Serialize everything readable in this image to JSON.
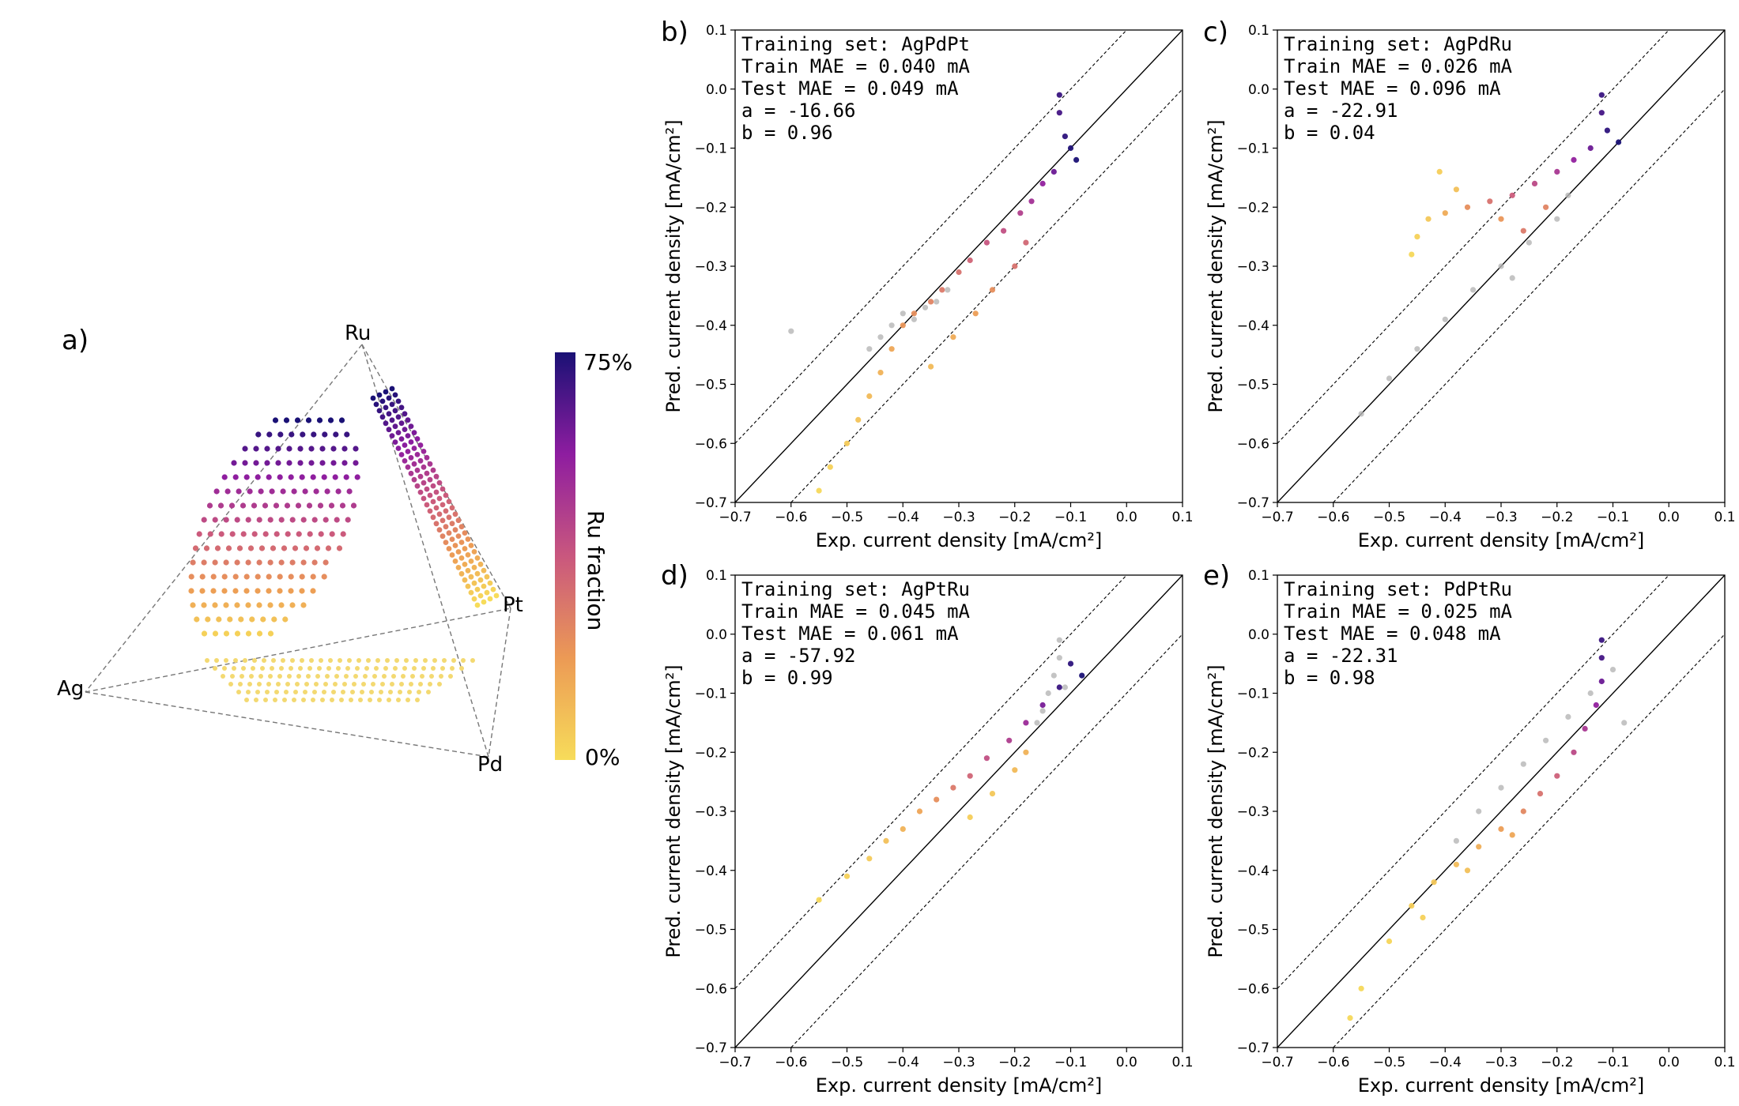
{
  "panel_labels": [
    "a)",
    "b)",
    "c)",
    "d)",
    "e)"
  ],
  "colors": {
    "ru_low": "#f5d44b",
    "ru_mid": "#c44e8a",
    "ru_high": "#1a1175",
    "test_points": "#b5b5b5",
    "parity_line": "#000000"
  },
  "tetrahedron": {
    "vertices": [
      "Ru",
      "Pt",
      "Ag",
      "Pd"
    ],
    "colorbar": {
      "title": "Ru fraction",
      "max_label": "75%",
      "min_label": "0%"
    }
  },
  "axes": {
    "xlabel": "Exp. current density [mA/cm²]",
    "ylabel": "Pred. current density [mA/cm²]",
    "ticks": [
      "−0.7",
      "−0.6",
      "−0.5",
      "−0.4",
      "−0.3",
      "−0.2",
      "−0.1",
      "0.0",
      "0.1"
    ]
  },
  "chart_data": [
    {
      "type": "scatter",
      "panel": "b)",
      "annotations": [
        "Training set: AgPdPt",
        "Train MAE = 0.040 mA",
        "Test MAE = 0.049 mA",
        "a = -16.66",
        "b = 0.96"
      ],
      "xlabel": "Exp. current density [mA/cm²]",
      "ylabel": "Pred. current density [mA/cm²]",
      "xlim": [
        -0.7,
        0.1
      ],
      "ylim": [
        -0.7,
        0.1
      ],
      "reference_lines": [
        "y = x",
        "y = x + 0.1",
        "y = x − 0.1"
      ],
      "series": [
        {
          "role": "train",
          "points": [
            [
              -0.12,
              -0.01,
              0.7
            ],
            [
              -0.12,
              -0.04,
              0.68
            ],
            [
              -0.11,
              -0.08,
              0.72
            ],
            [
              -0.1,
              -0.1,
              0.74
            ],
            [
              -0.09,
              -0.12,
              0.75
            ],
            [
              -0.13,
              -0.14,
              0.62
            ],
            [
              -0.15,
              -0.16,
              0.55
            ],
            [
              -0.17,
              -0.19,
              0.5
            ],
            [
              -0.19,
              -0.21,
              0.45
            ],
            [
              -0.22,
              -0.24,
              0.4
            ],
            [
              -0.25,
              -0.26,
              0.38
            ],
            [
              -0.28,
              -0.29,
              0.34
            ],
            [
              -0.3,
              -0.31,
              0.3
            ],
            [
              -0.33,
              -0.34,
              0.28
            ],
            [
              -0.35,
              -0.36,
              0.25
            ],
            [
              -0.38,
              -0.38,
              0.22
            ],
            [
              -0.4,
              -0.4,
              0.2
            ],
            [
              -0.42,
              -0.44,
              0.15
            ],
            [
              -0.44,
              -0.48,
              0.12
            ],
            [
              -0.46,
              -0.52,
              0.1
            ],
            [
              -0.48,
              -0.56,
              0.07
            ],
            [
              -0.5,
              -0.6,
              0.05
            ],
            [
              -0.53,
              -0.64,
              0.03
            ],
            [
              -0.55,
              -0.68,
              0.01
            ],
            [
              -0.2,
              -0.3,
              0.3
            ],
            [
              -0.24,
              -0.34,
              0.22
            ],
            [
              -0.27,
              -0.38,
              0.18
            ],
            [
              -0.31,
              -0.42,
              0.14
            ],
            [
              -0.35,
              -0.47,
              0.1
            ],
            [
              -0.18,
              -0.26,
              0.33
            ]
          ]
        },
        {
          "role": "test",
          "points": [
            [
              -0.42,
              -0.4
            ],
            [
              -0.4,
              -0.38
            ],
            [
              -0.38,
              -0.39
            ],
            [
              -0.36,
              -0.37
            ],
            [
              -0.44,
              -0.42
            ],
            [
              -0.46,
              -0.44
            ],
            [
              -0.34,
              -0.36
            ],
            [
              -0.32,
              -0.34
            ],
            [
              -0.6,
              -0.41
            ]
          ]
        }
      ]
    },
    {
      "type": "scatter",
      "panel": "c)",
      "annotations": [
        "Training set: AgPdRu",
        "Train MAE = 0.026 mA",
        "Test MAE = 0.096 mA",
        "a = -22.91",
        "b = 0.04"
      ],
      "xlabel": "Exp. current density [mA/cm²]",
      "ylabel": "Pred. current density [mA/cm²]",
      "xlim": [
        -0.7,
        0.1
      ],
      "ylim": [
        -0.7,
        0.1
      ],
      "reference_lines": [
        "y = x",
        "y = x + 0.1",
        "y = x − 0.1"
      ],
      "series": [
        {
          "role": "train",
          "points": [
            [
              -0.12,
              -0.01,
              0.7
            ],
            [
              -0.12,
              -0.04,
              0.68
            ],
            [
              -0.11,
              -0.07,
              0.72
            ],
            [
              -0.09,
              -0.09,
              0.75
            ],
            [
              -0.14,
              -0.1,
              0.62
            ],
            [
              -0.17,
              -0.12,
              0.55
            ],
            [
              -0.2,
              -0.14,
              0.48
            ],
            [
              -0.24,
              -0.16,
              0.42
            ],
            [
              -0.28,
              -0.18,
              0.36
            ],
            [
              -0.32,
              -0.19,
              0.3
            ],
            [
              -0.36,
              -0.2,
              0.22
            ],
            [
              -0.4,
              -0.21,
              0.14
            ],
            [
              -0.43,
              -0.22,
              0.06
            ],
            [
              -0.45,
              -0.25,
              0.03
            ],
            [
              -0.46,
              -0.28,
              0.01
            ],
            [
              -0.38,
              -0.17,
              0.08
            ],
            [
              -0.41,
              -0.14,
              0.04
            ],
            [
              -0.3,
              -0.22,
              0.2
            ],
            [
              -0.26,
              -0.24,
              0.28
            ],
            [
              -0.22,
              -0.2,
              0.25
            ]
          ]
        },
        {
          "role": "test",
          "points": [
            [
              -0.2,
              -0.22
            ],
            [
              -0.25,
              -0.26
            ],
            [
              -0.3,
              -0.3
            ],
            [
              -0.35,
              -0.34
            ],
            [
              -0.4,
              -0.39
            ],
            [
              -0.45,
              -0.44
            ],
            [
              -0.5,
              -0.49
            ],
            [
              -0.55,
              -0.55
            ],
            [
              -0.18,
              -0.18
            ],
            [
              -0.28,
              -0.32
            ]
          ]
        }
      ]
    },
    {
      "type": "scatter",
      "panel": "d)",
      "annotations": [
        "Training set: AgPtRu",
        "Train MAE = 0.045 mA",
        "Test MAE = 0.061 mA",
        "a = -57.92",
        "b = 0.99"
      ],
      "xlabel": "Exp. current density [mA/cm²]",
      "ylabel": "Pred. current density [mA/cm²]",
      "xlim": [
        -0.7,
        0.1
      ],
      "ylim": [
        -0.7,
        0.1
      ],
      "reference_lines": [
        "y = x",
        "y = x + 0.1",
        "y = x − 0.1"
      ],
      "series": [
        {
          "role": "train",
          "points": [
            [
              -0.1,
              -0.05,
              0.72
            ],
            [
              -0.08,
              -0.07,
              0.75
            ],
            [
              -0.12,
              -0.09,
              0.7
            ],
            [
              -0.15,
              -0.12,
              0.6
            ],
            [
              -0.18,
              -0.15,
              0.52
            ],
            [
              -0.21,
              -0.18,
              0.46
            ],
            [
              -0.25,
              -0.21,
              0.4
            ],
            [
              -0.28,
              -0.24,
              0.34
            ],
            [
              -0.31,
              -0.26,
              0.28
            ],
            [
              -0.34,
              -0.28,
              0.22
            ],
            [
              -0.37,
              -0.3,
              0.16
            ],
            [
              -0.4,
              -0.33,
              0.12
            ],
            [
              -0.43,
              -0.35,
              0.08
            ],
            [
              -0.46,
              -0.38,
              0.05
            ],
            [
              -0.5,
              -0.41,
              0.03
            ],
            [
              -0.55,
              -0.45,
              0.01
            ],
            [
              -0.2,
              -0.23,
              0.1
            ],
            [
              -0.24,
              -0.27,
              0.06
            ],
            [
              -0.28,
              -0.31,
              0.04
            ],
            [
              -0.18,
              -0.2,
              0.12
            ]
          ]
        },
        {
          "role": "test",
          "points": [
            [
              -0.12,
              -0.01
            ],
            [
              -0.12,
              -0.04
            ],
            [
              -0.13,
              -0.07
            ],
            [
              -0.14,
              -0.1
            ],
            [
              -0.15,
              -0.13
            ],
            [
              -0.11,
              -0.09
            ],
            [
              -0.16,
              -0.15
            ]
          ]
        }
      ]
    },
    {
      "type": "scatter",
      "panel": "e)",
      "annotations": [
        "Training set: PdPtRu",
        "Train MAE = 0.025 mA",
        "Test MAE = 0.048 mA",
        "a = -22.31",
        "b = 0.98"
      ],
      "xlabel": "Exp. current density [mA/cm²]",
      "ylabel": "Pred. current density [mA/cm²]",
      "xlim": [
        -0.7,
        0.1
      ],
      "ylim": [
        -0.7,
        0.1
      ],
      "reference_lines": [
        "y = x",
        "y = x + 0.1",
        "y = x − 0.1"
      ],
      "series": [
        {
          "role": "train",
          "points": [
            [
              -0.12,
              -0.01,
              0.7
            ],
            [
              -0.12,
              -0.04,
              0.68
            ],
            [
              -0.12,
              -0.08,
              0.62
            ],
            [
              -0.13,
              -0.12,
              0.55
            ],
            [
              -0.15,
              -0.16,
              0.48
            ],
            [
              -0.17,
              -0.2,
              0.42
            ],
            [
              -0.2,
              -0.24,
              0.35
            ],
            [
              -0.23,
              -0.27,
              0.3
            ],
            [
              -0.26,
              -0.3,
              0.24
            ],
            [
              -0.3,
              -0.33,
              0.18
            ],
            [
              -0.34,
              -0.36,
              0.13
            ],
            [
              -0.38,
              -0.39,
              0.09
            ],
            [
              -0.42,
              -0.42,
              0.06
            ],
            [
              -0.46,
              -0.46,
              0.04
            ],
            [
              -0.5,
              -0.52,
              0.02
            ],
            [
              -0.55,
              -0.6,
              0.01
            ],
            [
              -0.57,
              -0.65,
              0.01
            ],
            [
              -0.44,
              -0.48,
              0.03
            ],
            [
              -0.36,
              -0.4,
              0.08
            ],
            [
              -0.28,
              -0.34,
              0.15
            ]
          ]
        },
        {
          "role": "test",
          "points": [
            [
              -0.1,
              -0.06
            ],
            [
              -0.14,
              -0.1
            ],
            [
              -0.18,
              -0.14
            ],
            [
              -0.22,
              -0.18
            ],
            [
              -0.26,
              -0.22
            ],
            [
              -0.3,
              -0.26
            ],
            [
              -0.34,
              -0.3
            ],
            [
              -0.38,
              -0.35
            ],
            [
              -0.08,
              -0.15
            ]
          ]
        }
      ]
    }
  ]
}
